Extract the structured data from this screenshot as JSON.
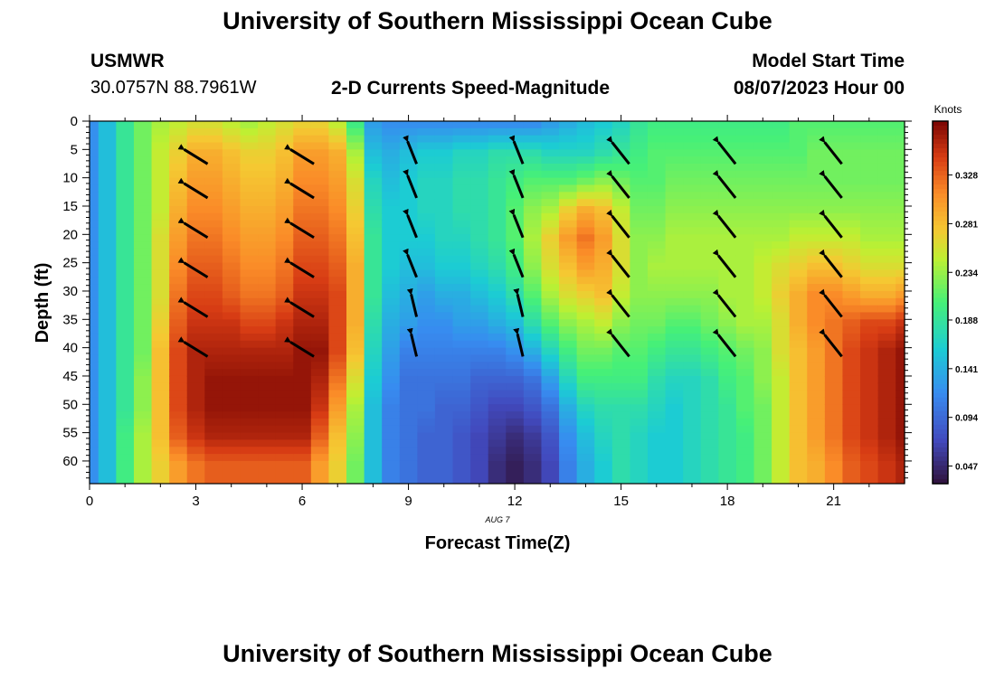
{
  "header": {
    "title": "University of Southern Mississippi Ocean Cube",
    "station": "USMWR",
    "coords": "30.0757N  88.7961W",
    "subtitle": "2-D Currents Speed-Magnitude",
    "model_start_label": "Model Start Time",
    "model_start_value": "08/07/2023 Hour 00",
    "date_note": "AUG  7",
    "footer_title": "University of Southern Mississippi Ocean Cube"
  },
  "chart_data": {
    "type": "heatmap",
    "title": "2-D Currents Speed-Magnitude",
    "xlabel": "Forecast Time(Z)",
    "ylabel": "Depth (ft)",
    "xlim": [
      0,
      23
    ],
    "ylim": [
      0,
      64
    ],
    "y_inverted": true,
    "x_ticks": [
      0,
      3,
      6,
      9,
      12,
      15,
      18,
      21
    ],
    "y_ticks": [
      0,
      5,
      10,
      15,
      20,
      25,
      30,
      35,
      40,
      45,
      50,
      55,
      60
    ],
    "colorbar": {
      "label": "Knots",
      "range": [
        0.03,
        0.38
      ],
      "ticks": [
        "0.047",
        "0.094",
        "0.141",
        "0.188",
        "0.234",
        "0.281",
        "0.328"
      ]
    },
    "time_hours": [
      0,
      0.5,
      1,
      1.5,
      2,
      2.5,
      3,
      3.5,
      4,
      4.5,
      5,
      5.5,
      6,
      6.5,
      7,
      7.5,
      8,
      8.5,
      9,
      9.5,
      10,
      10.5,
      11,
      11.5,
      12,
      12.5,
      13,
      13.5,
      14,
      14.5,
      15,
      15.5,
      16,
      16.5,
      17,
      17.5,
      18,
      18.5,
      19,
      19.5,
      20,
      20.5,
      21,
      21.5,
      22,
      22.5,
      23
    ],
    "depth_ft": [
      0,
      5,
      10,
      15,
      20,
      25,
      30,
      35,
      40,
      45,
      50,
      55,
      60
    ],
    "speed_knots": [
      [
        0.12,
        0.12,
        0.12,
        0.12,
        0.12,
        0.12,
        0.12,
        0.12,
        0.12,
        0.12,
        0.12,
        0.12,
        0.12
      ],
      [
        0.15,
        0.15,
        0.15,
        0.15,
        0.15,
        0.15,
        0.15,
        0.15,
        0.15,
        0.15,
        0.15,
        0.15,
        0.15
      ],
      [
        0.19,
        0.19,
        0.19,
        0.19,
        0.19,
        0.19,
        0.19,
        0.19,
        0.19,
        0.19,
        0.19,
        0.2,
        0.2
      ],
      [
        0.22,
        0.22,
        0.22,
        0.22,
        0.22,
        0.22,
        0.22,
        0.22,
        0.22,
        0.23,
        0.23,
        0.24,
        0.24
      ],
      [
        0.24,
        0.25,
        0.25,
        0.25,
        0.26,
        0.26,
        0.26,
        0.27,
        0.28,
        0.28,
        0.28,
        0.28,
        0.27
      ],
      [
        0.25,
        0.27,
        0.28,
        0.29,
        0.3,
        0.31,
        0.32,
        0.33,
        0.34,
        0.34,
        0.34,
        0.33,
        0.3
      ],
      [
        0.26,
        0.29,
        0.3,
        0.31,
        0.32,
        0.33,
        0.34,
        0.35,
        0.36,
        0.36,
        0.36,
        0.35,
        0.32
      ],
      [
        0.26,
        0.29,
        0.3,
        0.31,
        0.32,
        0.33,
        0.34,
        0.35,
        0.36,
        0.37,
        0.37,
        0.36,
        0.33
      ],
      [
        0.25,
        0.28,
        0.29,
        0.3,
        0.31,
        0.32,
        0.33,
        0.35,
        0.36,
        0.37,
        0.37,
        0.36,
        0.33
      ],
      [
        0.24,
        0.27,
        0.28,
        0.29,
        0.3,
        0.31,
        0.32,
        0.34,
        0.36,
        0.37,
        0.37,
        0.36,
        0.33
      ],
      [
        0.25,
        0.27,
        0.28,
        0.29,
        0.3,
        0.31,
        0.32,
        0.34,
        0.36,
        0.37,
        0.37,
        0.36,
        0.33
      ],
      [
        0.26,
        0.28,
        0.29,
        0.3,
        0.31,
        0.32,
        0.33,
        0.35,
        0.36,
        0.37,
        0.37,
        0.36,
        0.33
      ],
      [
        0.27,
        0.3,
        0.31,
        0.32,
        0.33,
        0.34,
        0.35,
        0.36,
        0.37,
        0.37,
        0.37,
        0.36,
        0.33
      ],
      [
        0.27,
        0.3,
        0.31,
        0.32,
        0.33,
        0.34,
        0.35,
        0.36,
        0.37,
        0.36,
        0.35,
        0.33,
        0.3
      ],
      [
        0.25,
        0.29,
        0.3,
        0.31,
        0.32,
        0.33,
        0.34,
        0.34,
        0.34,
        0.32,
        0.3,
        0.28,
        0.27
      ],
      [
        0.2,
        0.24,
        0.26,
        0.27,
        0.28,
        0.29,
        0.29,
        0.29,
        0.28,
        0.26,
        0.24,
        0.23,
        0.22
      ],
      [
        0.13,
        0.15,
        0.17,
        0.18,
        0.19,
        0.19,
        0.19,
        0.18,
        0.17,
        0.16,
        0.15,
        0.15,
        0.15
      ],
      [
        0.12,
        0.14,
        0.15,
        0.16,
        0.16,
        0.16,
        0.15,
        0.14,
        0.13,
        0.12,
        0.11,
        0.11,
        0.11
      ],
      [
        0.12,
        0.15,
        0.16,
        0.16,
        0.16,
        0.15,
        0.14,
        0.13,
        0.11,
        0.1,
        0.1,
        0.1,
        0.1
      ],
      [
        0.12,
        0.16,
        0.17,
        0.17,
        0.16,
        0.15,
        0.13,
        0.12,
        0.11,
        0.1,
        0.1,
        0.09,
        0.09
      ],
      [
        0.12,
        0.16,
        0.17,
        0.17,
        0.17,
        0.16,
        0.14,
        0.12,
        0.11,
        0.1,
        0.09,
        0.09,
        0.09
      ],
      [
        0.12,
        0.17,
        0.18,
        0.18,
        0.17,
        0.16,
        0.14,
        0.13,
        0.11,
        0.1,
        0.09,
        0.08,
        0.08
      ],
      [
        0.12,
        0.17,
        0.18,
        0.18,
        0.18,
        0.17,
        0.15,
        0.13,
        0.11,
        0.09,
        0.08,
        0.07,
        0.07
      ],
      [
        0.12,
        0.18,
        0.19,
        0.19,
        0.19,
        0.18,
        0.16,
        0.14,
        0.11,
        0.09,
        0.07,
        0.06,
        0.05
      ],
      [
        0.12,
        0.18,
        0.2,
        0.21,
        0.21,
        0.2,
        0.18,
        0.15,
        0.12,
        0.09,
        0.07,
        0.05,
        0.04
      ],
      [
        0.12,
        0.18,
        0.21,
        0.23,
        0.24,
        0.23,
        0.21,
        0.18,
        0.14,
        0.1,
        0.08,
        0.06,
        0.05
      ],
      [
        0.13,
        0.17,
        0.21,
        0.24,
        0.27,
        0.26,
        0.24,
        0.21,
        0.17,
        0.13,
        0.1,
        0.08,
        0.07
      ],
      [
        0.14,
        0.17,
        0.21,
        0.27,
        0.3,
        0.28,
        0.26,
        0.23,
        0.2,
        0.17,
        0.14,
        0.12,
        0.11
      ],
      [
        0.15,
        0.17,
        0.22,
        0.29,
        0.32,
        0.3,
        0.27,
        0.24,
        0.22,
        0.2,
        0.17,
        0.15,
        0.14
      ],
      [
        0.16,
        0.18,
        0.23,
        0.28,
        0.3,
        0.29,
        0.28,
        0.25,
        0.22,
        0.2,
        0.18,
        0.17,
        0.16
      ],
      [
        0.17,
        0.19,
        0.22,
        0.25,
        0.26,
        0.26,
        0.25,
        0.23,
        0.21,
        0.2,
        0.18,
        0.18,
        0.18
      ],
      [
        0.19,
        0.2,
        0.21,
        0.22,
        0.23,
        0.23,
        0.23,
        0.22,
        0.21,
        0.2,
        0.18,
        0.17,
        0.17
      ],
      [
        0.2,
        0.21,
        0.21,
        0.22,
        0.23,
        0.24,
        0.23,
        0.22,
        0.2,
        0.18,
        0.17,
        0.16,
        0.16
      ],
      [
        0.2,
        0.21,
        0.22,
        0.23,
        0.24,
        0.24,
        0.23,
        0.21,
        0.19,
        0.17,
        0.16,
        0.16,
        0.16
      ],
      [
        0.2,
        0.21,
        0.22,
        0.23,
        0.24,
        0.24,
        0.23,
        0.21,
        0.19,
        0.17,
        0.17,
        0.17,
        0.17
      ],
      [
        0.2,
        0.21,
        0.22,
        0.23,
        0.24,
        0.24,
        0.23,
        0.22,
        0.2,
        0.18,
        0.18,
        0.18,
        0.18
      ],
      [
        0.2,
        0.21,
        0.22,
        0.23,
        0.24,
        0.24,
        0.24,
        0.23,
        0.21,
        0.2,
        0.19,
        0.19,
        0.19
      ],
      [
        0.2,
        0.21,
        0.22,
        0.23,
        0.24,
        0.24,
        0.24,
        0.24,
        0.22,
        0.21,
        0.21,
        0.2,
        0.2
      ],
      [
        0.2,
        0.21,
        0.22,
        0.23,
        0.24,
        0.25,
        0.25,
        0.24,
        0.23,
        0.23,
        0.22,
        0.22,
        0.22
      ],
      [
        0.2,
        0.21,
        0.22,
        0.23,
        0.24,
        0.26,
        0.27,
        0.26,
        0.26,
        0.25,
        0.25,
        0.25,
        0.25
      ],
      [
        0.21,
        0.21,
        0.22,
        0.23,
        0.25,
        0.27,
        0.29,
        0.29,
        0.28,
        0.28,
        0.28,
        0.28,
        0.28
      ],
      [
        0.21,
        0.22,
        0.22,
        0.23,
        0.25,
        0.28,
        0.31,
        0.31,
        0.3,
        0.3,
        0.3,
        0.3,
        0.29
      ],
      [
        0.21,
        0.22,
        0.22,
        0.23,
        0.25,
        0.28,
        0.31,
        0.32,
        0.32,
        0.32,
        0.32,
        0.32,
        0.31
      ],
      [
        0.21,
        0.22,
        0.22,
        0.23,
        0.25,
        0.27,
        0.3,
        0.33,
        0.34,
        0.34,
        0.34,
        0.34,
        0.33
      ],
      [
        0.21,
        0.22,
        0.22,
        0.23,
        0.24,
        0.26,
        0.29,
        0.34,
        0.35,
        0.35,
        0.35,
        0.35,
        0.34
      ],
      [
        0.21,
        0.22,
        0.22,
        0.23,
        0.24,
        0.26,
        0.29,
        0.34,
        0.36,
        0.36,
        0.36,
        0.36,
        0.35
      ],
      [
        0.21,
        0.22,
        0.22,
        0.23,
        0.24,
        0.26,
        0.3,
        0.35,
        0.37,
        0.37,
        0.37,
        0.37,
        0.36
      ]
    ],
    "vectors": {
      "times": [
        3,
        6,
        9,
        12,
        15,
        18,
        21
      ],
      "depths": [
        5,
        11,
        18,
        25,
        32,
        39
      ],
      "direction": "toward upper-left (northwest)"
    }
  }
}
